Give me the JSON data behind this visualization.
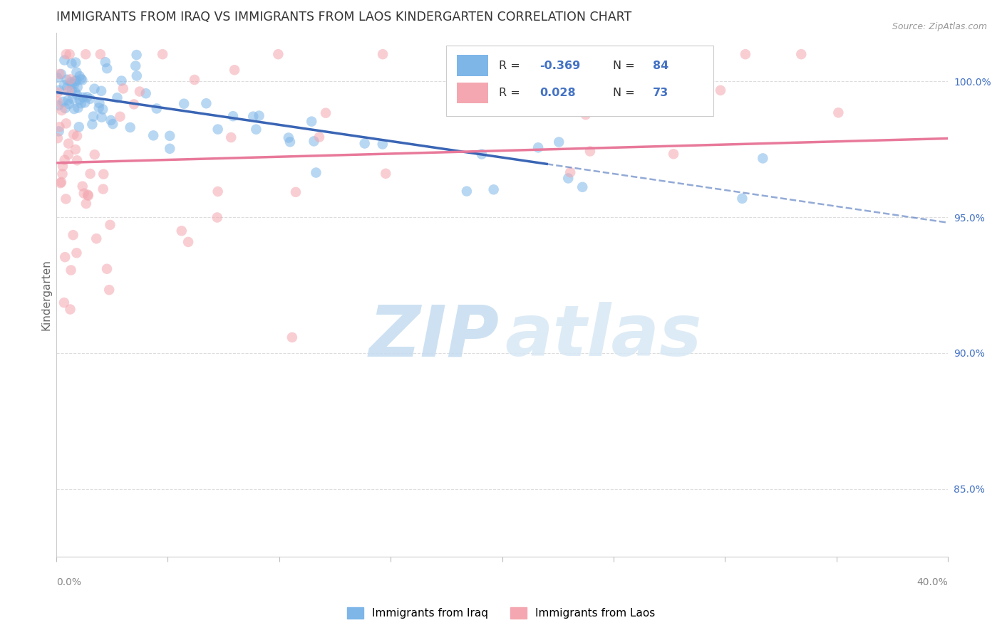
{
  "title": "IMMIGRANTS FROM IRAQ VS IMMIGRANTS FROM LAOS KINDERGARTEN CORRELATION CHART",
  "source": "Source: ZipAtlas.com",
  "ylabel": "Kindergarten",
  "x_range": [
    0.0,
    40.0
  ],
  "y_range": [
    82.5,
    101.8
  ],
  "legend_iraq_R": "-0.369",
  "legend_iraq_N": "84",
  "legend_laos_R": "0.028",
  "legend_laos_N": "73",
  "iraq_color": "#7EB6E8",
  "laos_color": "#F4A7B0",
  "iraq_line_color": "#3A65B5",
  "laos_line_color": "#E8799A",
  "grid_color": "#DDDDDD",
  "iraq_line_x0": 0.0,
  "iraq_line_y0": 99.6,
  "iraq_line_x1": 40.0,
  "iraq_line_y1": 94.8,
  "iraq_solid_end": 22.0,
  "laos_line_x0": 0.0,
  "laos_line_y0": 97.0,
  "laos_line_x1": 40.0,
  "laos_line_y1": 97.9,
  "yticks": [
    85.0,
    90.0,
    95.0,
    100.0
  ],
  "ytick_labels": [
    "85.0%",
    "90.0%",
    "95.0%",
    "100.0%"
  ]
}
